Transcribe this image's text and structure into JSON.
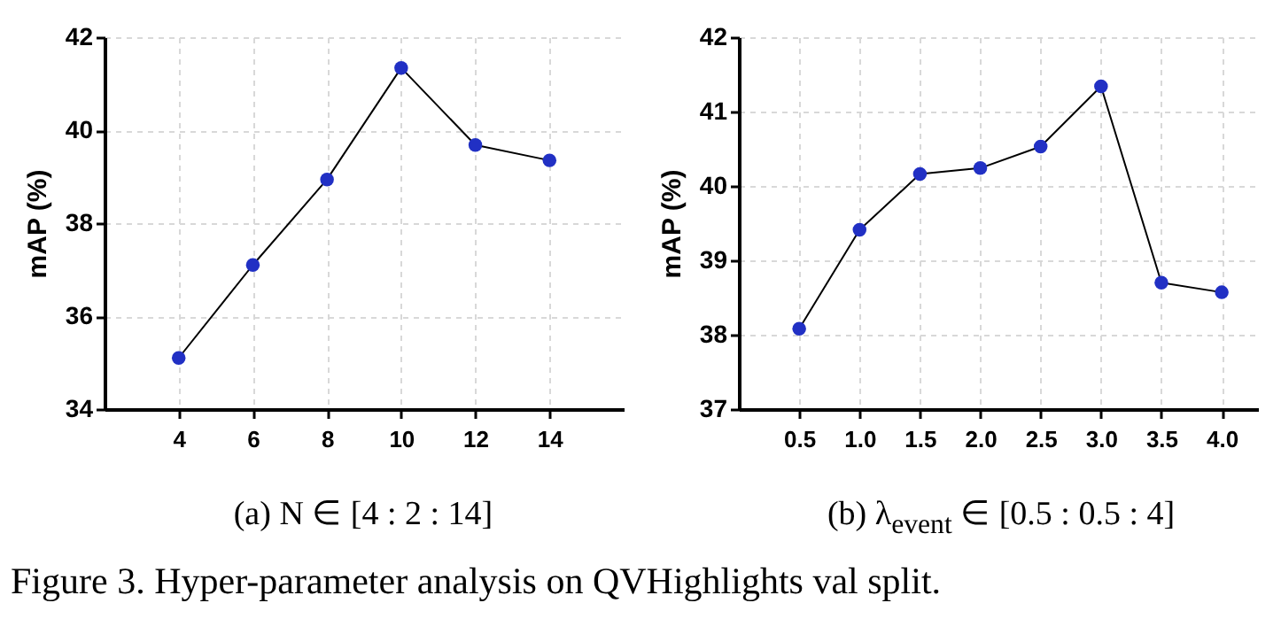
{
  "chart_data": [
    {
      "type": "line",
      "xlabel": "(a) N ∈ [4 : 2 : 14]",
      "ylabel": "mAP (%)",
      "x": [
        4,
        6,
        8,
        10,
        12,
        14
      ],
      "series": [
        {
          "color": "#2130c4",
          "values": [
            35.1,
            37.1,
            38.94,
            41.34,
            39.68,
            39.35
          ]
        }
      ],
      "xlim": [
        2,
        16
      ],
      "xticks": [
        4,
        6,
        8,
        10,
        12,
        14
      ],
      "ylim": [
        34,
        42
      ],
      "yticks": [
        34,
        36,
        38,
        40,
        42
      ],
      "grid": true,
      "marker": "circle",
      "line_style": "solid",
      "annotations": [
        "Figure 3. Hyper-parameter analysis on QVHighlights val split."
      ]
    },
    {
      "type": "line",
      "xlabel": "(b) λ$_{event}$ ∈ [0.5 : 0.5 : 4]",
      "ylabel": "mAP (%)",
      "x": [
        0.5,
        1,
        1.5,
        2,
        2.5,
        3,
        3.5,
        4
      ],
      "series": [
        {
          "color": "#2130c4",
          "values": [
            38.08,
            39.41,
            40.16,
            40.24,
            40.53,
            41.34,
            38.7,
            38.57
          ]
        }
      ],
      "xlim": [
        0,
        4.3
      ],
      "xticks": [
        0.5,
        {
          "value": 1,
          "label": "1.0"
        },
        1.5,
        {
          "value": 2,
          "label": "2.0"
        },
        2.5,
        {
          "value": 3,
          "label": "3.0"
        },
        3.5,
        {
          "value": 4,
          "label": "4.0"
        }
      ],
      "ylim": [
        37,
        42
      ],
      "yticks": [
        37,
        38,
        39,
        40,
        41,
        42
      ],
      "grid": true,
      "marker": "circle",
      "line_style": "solid"
    }
  ]
}
